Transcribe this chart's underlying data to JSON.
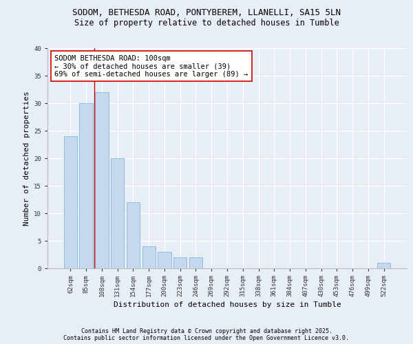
{
  "title_line1": "SODOM, BETHESDA ROAD, PONTYBEREM, LLANELLI, SA15 5LN",
  "title_line2": "Size of property relative to detached houses in Tumble",
  "xlabel": "Distribution of detached houses by size in Tumble",
  "ylabel": "Number of detached properties",
  "categories": [
    "62sqm",
    "85sqm",
    "108sqm",
    "131sqm",
    "154sqm",
    "177sqm",
    "200sqm",
    "223sqm",
    "246sqm",
    "269sqm",
    "292sqm",
    "315sqm",
    "338sqm",
    "361sqm",
    "384sqm",
    "407sqm",
    "430sqm",
    "453sqm",
    "476sqm",
    "499sqm",
    "522sqm"
  ],
  "values": [
    24,
    30,
    32,
    20,
    12,
    4,
    3,
    2,
    2,
    0,
    0,
    0,
    0,
    0,
    0,
    0,
    0,
    0,
    0,
    0,
    1
  ],
  "bar_color": "#c5d8ed",
  "bar_edge_color": "#7fb8d8",
  "vline_x_index": 1.5,
  "vline_color": "#cc0000",
  "annotation_text": "SODOM BETHESDA ROAD: 100sqm\n← 30% of detached houses are smaller (39)\n69% of semi-detached houses are larger (89) →",
  "annotation_box_color": "#ffffff",
  "annotation_box_edge": "#cc0000",
  "ylim": [
    0,
    40
  ],
  "yticks": [
    0,
    5,
    10,
    15,
    20,
    25,
    30,
    35,
    40
  ],
  "footer_line1": "Contains HM Land Registry data © Crown copyright and database right 2025.",
  "footer_line2": "Contains public sector information licensed under the Open Government Licence v3.0.",
  "background_color": "#e8eef5",
  "plot_bg_color": "#e8eef5",
  "title_fontsize": 9,
  "subtitle_fontsize": 8.5,
  "axis_label_fontsize": 8,
  "tick_fontsize": 6.5,
  "annotation_fontsize": 7.5,
  "footer_fontsize": 6
}
